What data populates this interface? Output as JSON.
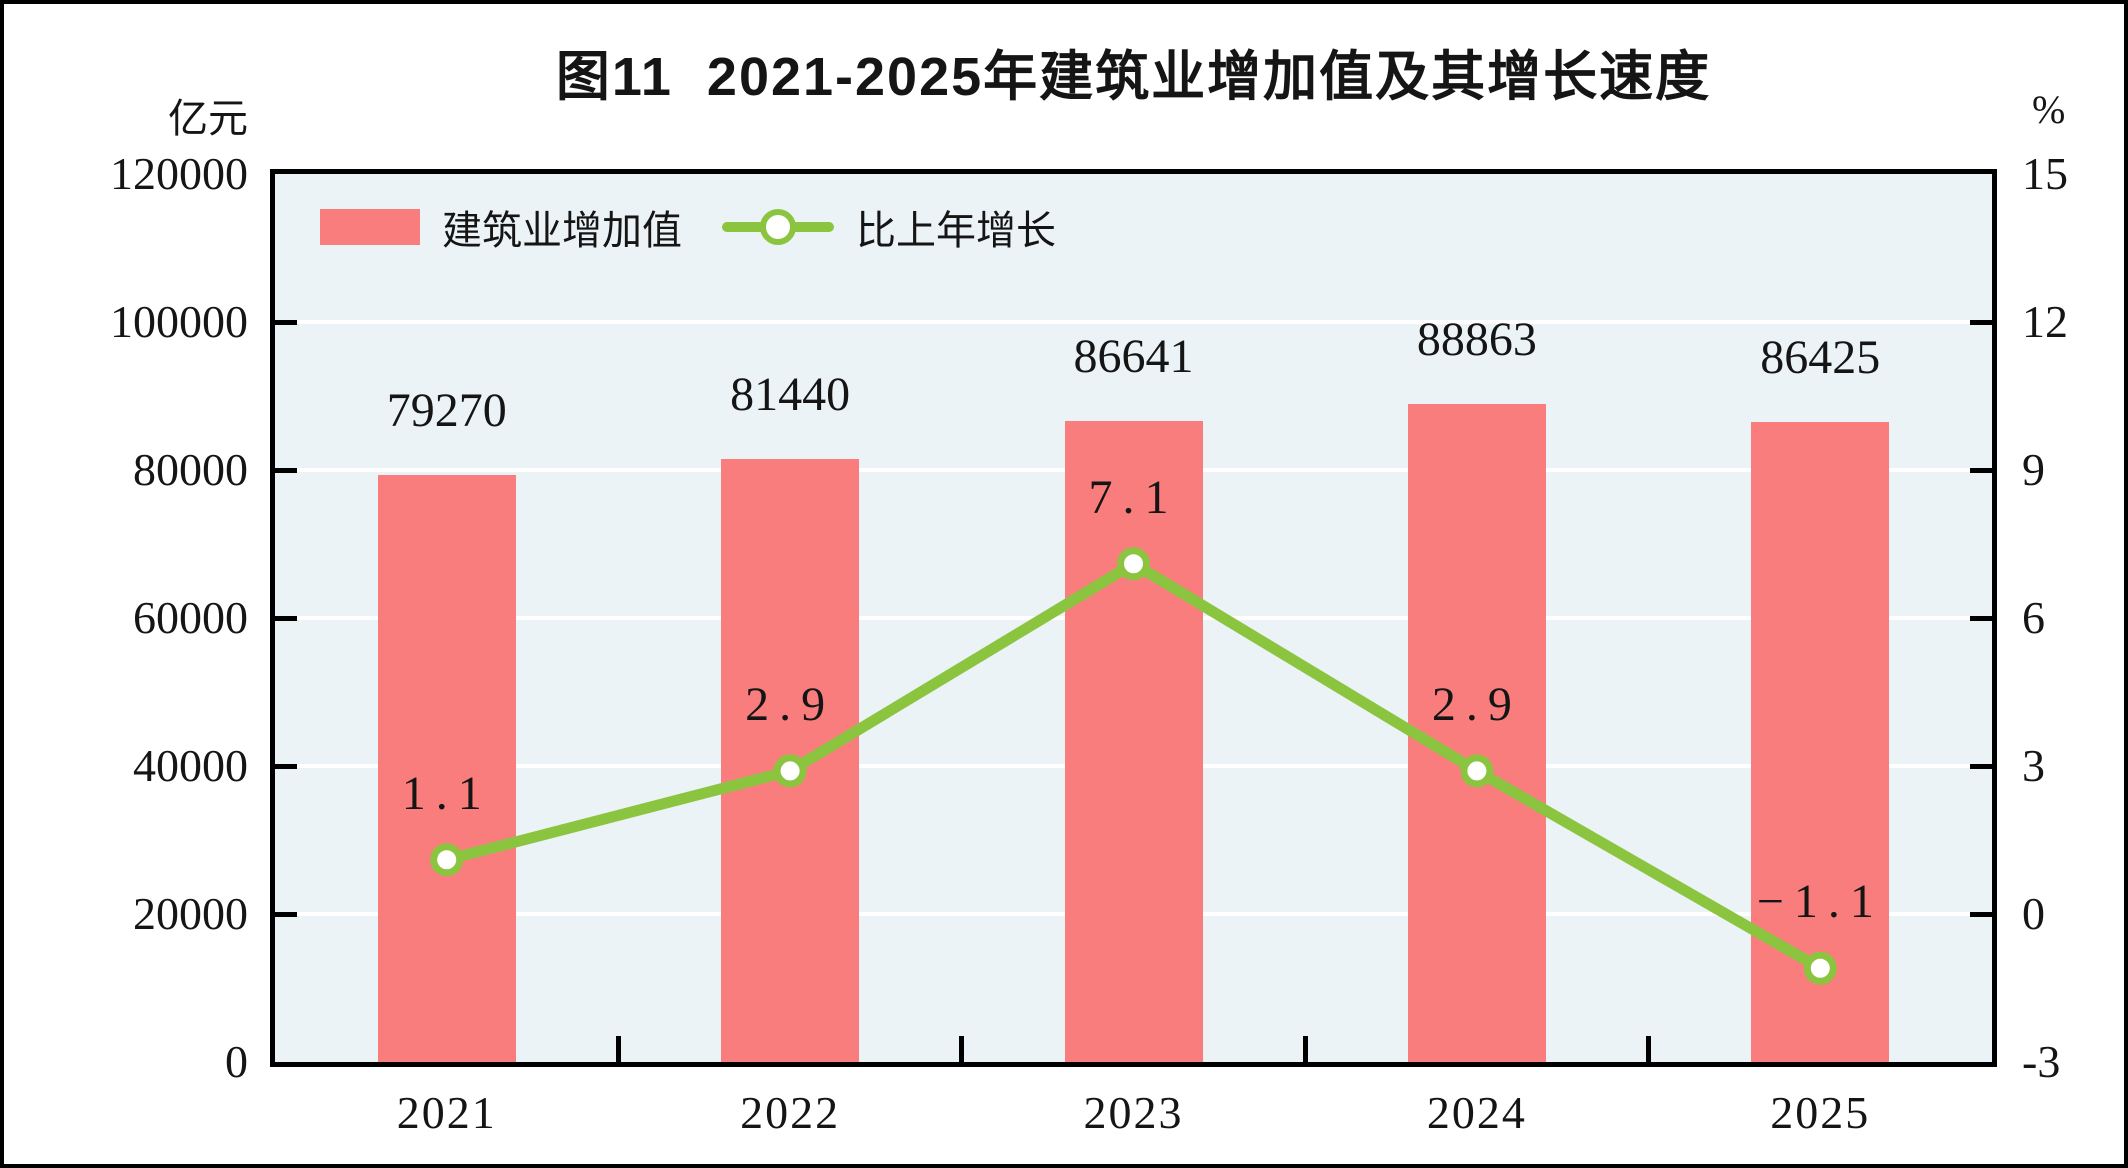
{
  "figure": {
    "title": "图11  2021-2025年建筑业增加值及其增长速度",
    "left_axis_unit": "亿元",
    "right_axis_unit": "%"
  },
  "legend": {
    "bar_label": "建筑业增加值",
    "line_label": "比上年增长"
  },
  "colors": {
    "bar": "#f97d7d",
    "line": "#8bc540",
    "marker_fill": "#ffffff",
    "plot_background": "#ebf3f7",
    "gridline": "#ffffff",
    "axis": "#000000",
    "text": "#151515"
  },
  "chart_data": {
    "type": "bar+line",
    "title": "图11  2021-2025年建筑业增加值及其增长速度",
    "categories": [
      "2021",
      "2022",
      "2023",
      "2024",
      "2025"
    ],
    "series": [
      {
        "name": "建筑业增加值",
        "type": "bar",
        "axis": "left",
        "values": [
          79270,
          81440,
          86641,
          88863,
          86425
        ],
        "labels": [
          "79270",
          "81440",
          "86641",
          "88863",
          "86425"
        ],
        "color": "#f97d7d"
      },
      {
        "name": "比上年增长",
        "type": "line",
        "axis": "right",
        "values": [
          1.1,
          2.9,
          7.1,
          2.9,
          -1.1
        ],
        "labels": [
          "1.1",
          "2.9",
          "7.1",
          "2.9",
          "−1.1"
        ],
        "color": "#8bc540"
      }
    ],
    "left_axis": {
      "label": "亿元",
      "min": 0,
      "max": 120000,
      "ticks": [
        0,
        20000,
        40000,
        60000,
        80000,
        100000,
        120000
      ],
      "tick_labels": [
        "0",
        "20000",
        "40000",
        "60000",
        "80000",
        "100000",
        "120000"
      ]
    },
    "right_axis": {
      "label": "%",
      "min": -3,
      "max": 15,
      "ticks": [
        -3,
        0,
        3,
        6,
        9,
        12,
        15
      ],
      "tick_labels": [
        "-3",
        "0",
        "3",
        "6",
        "9",
        "12",
        "15"
      ]
    },
    "grid": true,
    "legend_position": "top-left-inside"
  }
}
